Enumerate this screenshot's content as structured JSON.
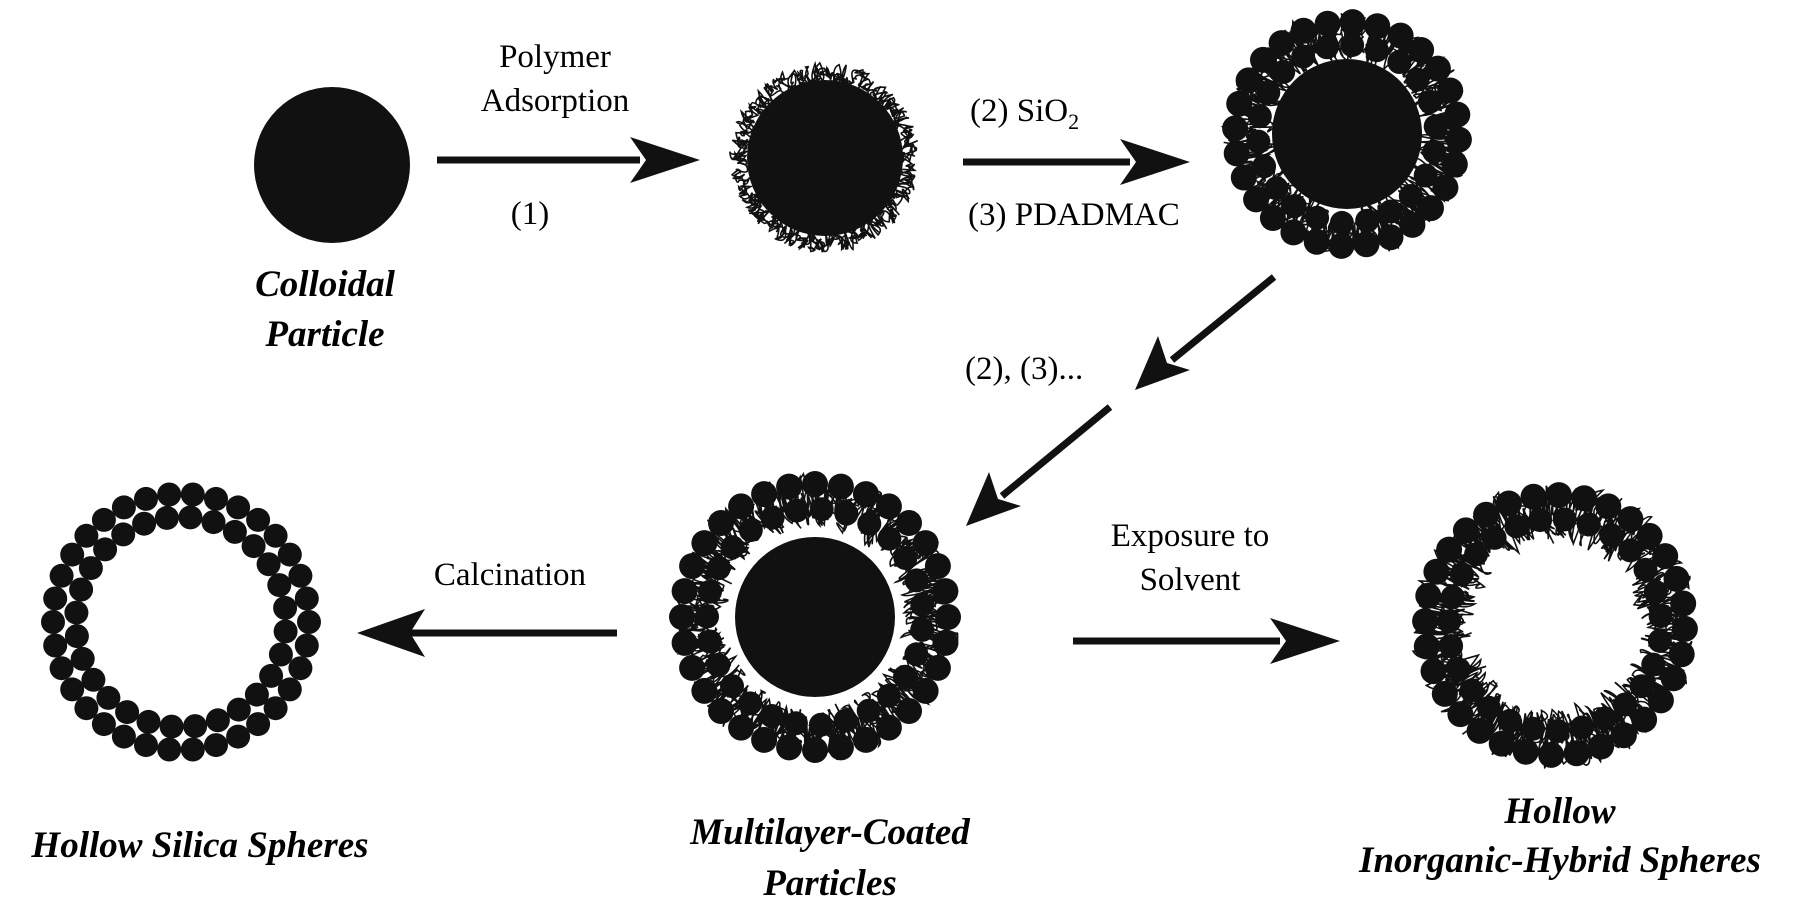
{
  "ink_color": "#111111",
  "steps": {
    "step1_line1": "Polymer",
    "step1_line2": "Adsorption",
    "step1_num": "(1)",
    "step2_prefix": "(2) SiO",
    "step2_subscript": "2",
    "step3": "(3) PDADMAC",
    "repeat": "(2), (3)...",
    "calcination": "Calcination",
    "exposure_line1": "Exposure to",
    "exposure_line2": "Solvent"
  },
  "captions": {
    "colloidal_line1": "Colloidal",
    "colloidal_line2": "Particle",
    "hollow_silica": "Hollow Silica  Spheres",
    "multilayer_line1": "Multilayer-Coated",
    "multilayer_line2": "Particles",
    "hybrid_line1": "Hollow",
    "hybrid_line2": "Inorganic-Hybrid Spheres"
  }
}
